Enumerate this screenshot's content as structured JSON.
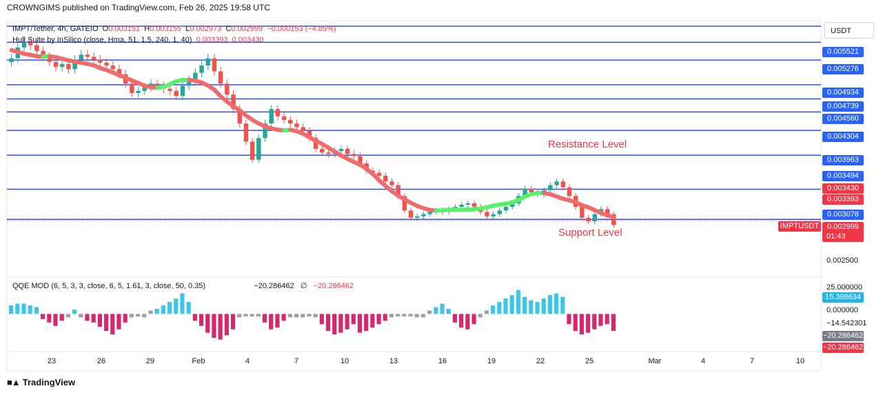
{
  "header": {
    "publisher": "CROWNGIMS published on TradingView.com, Feb 26, 2025 19:58 UTC"
  },
  "legend": {
    "symbol": "IMPT/Tether, 4h, GATEIO",
    "o_label": "O",
    "o": "0.003151",
    "h_label": "H",
    "h": "0.003155",
    "l_label": "L",
    "l": "0.002973",
    "c_label": "C",
    "c": "0.002999",
    "change": "−0.000153 (−4.85%)",
    "indicator": "Hull Suite by InSilico (close, Hma, 51, 1.5, 240, 1, 40)",
    "ind_v1": "0.003393",
    "ind_v2": "0.003430",
    "qqe": "QQE MOD (6, 5, 3, 3, close, 6, 5, 1.61, 3, close, 50, 0.35)",
    "qqe_v1": "−20.286462",
    "qqe_sym": "∅",
    "qqe_v2": "−20.286462"
  },
  "annotations": {
    "resistance": "Resistance Level",
    "support": "Support Level"
  },
  "price_axis": {
    "currency": "USDT",
    "labels": [
      {
        "text": "0.005521",
        "kind": "line"
      },
      {
        "text": "0.005276",
        "kind": "line"
      },
      {
        "text": "0.004934",
        "kind": "line"
      },
      {
        "text": "0.004739",
        "kind": "line"
      },
      {
        "text": "0.004560",
        "kind": "line"
      },
      {
        "text": "0.004304",
        "kind": "line"
      },
      {
        "text": "0.003963",
        "kind": "line"
      },
      {
        "text": "0.003494",
        "kind": "line"
      },
      {
        "text": "0.003430",
        "kind": "red"
      },
      {
        "text": "0.003393",
        "kind": "red"
      },
      {
        "text": "0.003078",
        "kind": "line"
      },
      {
        "text": "0.002999",
        "kind": "red"
      },
      {
        "text": "01:43",
        "kind": "red"
      },
      {
        "text": "0.002500",
        "kind": "plain"
      }
    ],
    "symbol_tag": "IMPTUSDT"
  },
  "qqe_axis": {
    "labels": [
      {
        "text": "25.000000",
        "kind": "plain"
      },
      {
        "text": "15.398634",
        "kind": "cyan"
      },
      {
        "text": "0.000000",
        "kind": "plain"
      },
      {
        "text": "−14.542301",
        "kind": "plain"
      },
      {
        "text": "−20.286462",
        "kind": "gray"
      },
      {
        "text": "−20.286462",
        "kind": "red"
      }
    ]
  },
  "time_axis": [
    "23",
    "26",
    "29",
    "Feb",
    "4",
    "7",
    "10",
    "13",
    "16",
    "19",
    "22",
    "25",
    "Mar",
    "4",
    "7",
    "10"
  ],
  "colors": {
    "blue_line": "#2b50e6",
    "bull": "#26a69a",
    "bear": "#ef5350",
    "hull_up": "#59f06b",
    "hull_down": "#f06b6b",
    "qqe_up": "#3ec6e8",
    "qqe_down": "#d6286f",
    "qqe_neutral": "#9e9e9e",
    "tag_red": "#f23645",
    "tag_blue": "#2962ff"
  },
  "chart_data": {
    "type": "candlestick",
    "title": "IMPT/Tether, 4h, GATEIO",
    "ylim": [
      0.0023,
      0.0058
    ],
    "horizontal_levels": [
      0.005521,
      0.005276,
      0.004934,
      0.004739,
      0.00456,
      0.004304,
      0.003963,
      0.003494,
      0.003078
    ],
    "close_approx": [
      0.0053,
      0.00545,
      0.00552,
      0.00548,
      0.0054,
      0.00532,
      0.00525,
      0.00518,
      0.00522,
      0.00515,
      0.00528,
      0.00535,
      0.00532,
      0.00528,
      0.00524,
      0.0052,
      0.00515,
      0.00508,
      0.00495,
      0.00482,
      0.00485,
      0.0049,
      0.00495,
      0.00492,
      0.00488,
      0.00485,
      0.00478,
      0.00492,
      0.005,
      0.0051,
      0.0052,
      0.0053,
      0.00512,
      0.00495,
      0.0048,
      0.0046,
      0.0044,
      0.00415,
      0.0039,
      0.0042,
      0.0044,
      0.0046,
      0.0045,
      0.00445,
      0.0044,
      0.00435,
      0.0043,
      0.0042,
      0.00405,
      0.004,
      0.00398,
      0.00402,
      0.00405,
      0.00398,
      0.00395,
      0.00385,
      0.00375,
      0.00372,
      0.00368,
      0.0036,
      0.00355,
      0.0034,
      0.0032,
      0.0031,
      0.00312,
      0.00315,
      0.00318,
      0.0032,
      0.00318,
      0.00322,
      0.00325,
      0.00328,
      0.0033,
      0.00325,
      0.00318,
      0.00312,
      0.00315,
      0.0032,
      0.00325,
      0.0033,
      0.0034,
      0.0035,
      0.00345,
      0.00342,
      0.00348,
      0.00355,
      0.0036,
      0.00352,
      0.0034,
      0.00325,
      0.0031,
      0.00305,
      0.00315,
      0.00322,
      0.00315,
      0.003
    ],
    "hull_suite": {
      "values": [
        "0.003393",
        "0.003430"
      ]
    },
    "qqe_mod": {
      "ylim": [
        -40,
        35
      ],
      "levels": [
        25,
        0,
        -14.542301
      ],
      "last": -20.286462,
      "histogram": [
        10,
        12,
        12,
        10,
        8,
        -6,
        -10,
        -14,
        -8,
        -4,
        5,
        -4,
        -8,
        -10,
        -15,
        -20,
        -24,
        -18,
        -10,
        -4,
        -3,
        -4,
        4,
        6,
        10,
        14,
        18,
        24,
        14,
        -8,
        -14,
        -22,
        -28,
        -30,
        -25,
        -18,
        -4,
        -3,
        -3,
        -3,
        -10,
        -18,
        -16,
        -8,
        -4,
        -4,
        -4,
        -3,
        -4,
        -12,
        -20,
        -24,
        -22,
        -18,
        -12,
        -22,
        -20,
        -16,
        -12,
        -8,
        -4,
        -3,
        -3,
        -3,
        -4,
        -4,
        4,
        8,
        12,
        6,
        -10,
        -16,
        -18,
        -12,
        -4,
        4,
        10,
        14,
        18,
        22,
        28,
        20,
        16,
        14,
        18,
        22,
        24,
        20,
        -12,
        -20,
        -24,
        -22,
        -18,
        -14,
        -12,
        -20
      ]
    },
    "x_ticks": [
      "23",
      "26",
      "29",
      "Feb",
      "4",
      "7",
      "10",
      "13",
      "16",
      "19",
      "22",
      "25",
      "Mar",
      "4",
      "7",
      "10"
    ]
  }
}
